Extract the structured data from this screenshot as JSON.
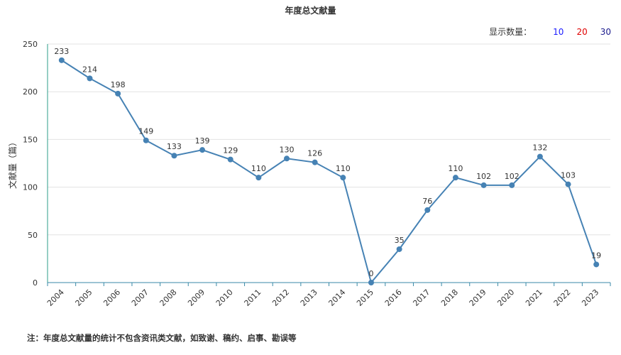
{
  "display_count": {
    "label": "显示数量：",
    "options": [
      {
        "text": "10",
        "color": "#1a1aff"
      },
      {
        "text": "20",
        "color": "#e00000"
      },
      {
        "text": "30",
        "color": "#1a1a8c"
      }
    ]
  },
  "footnote": "注：年度总文献量的统计不包含资讯类文献，如致谢、稿约、启事、勘误等",
  "chart_data": {
    "type": "line",
    "title": "年度总文献量",
    "xlabel": "",
    "ylabel": "文献量（篇）",
    "ylim": [
      0,
      250
    ],
    "yticks": [
      "0",
      "50",
      "100",
      "150",
      "200",
      "250"
    ],
    "grid": true,
    "line_color": "#4682b4",
    "categories": [
      "2004",
      "2005",
      "2006",
      "2007",
      "2008",
      "2009",
      "2010",
      "2011",
      "2012",
      "2013",
      "2014",
      "2015",
      "2016",
      "2017",
      "2018",
      "2019",
      "2020",
      "2021",
      "2022",
      "2023"
    ],
    "series": [
      {
        "values": [
          233,
          214,
          198,
          149,
          133,
          139,
          129,
          110,
          130,
          126,
          110,
          0,
          35,
          76,
          110,
          102,
          102,
          132,
          103,
          19
        ],
        "labels": [
          "233",
          "214",
          "198",
          "149",
          "133",
          "139",
          "129",
          "110",
          "130",
          "126",
          "110",
          "0",
          "35",
          "76",
          "110",
          "102",
          "102",
          "132",
          "103",
          "19"
        ]
      }
    ]
  }
}
